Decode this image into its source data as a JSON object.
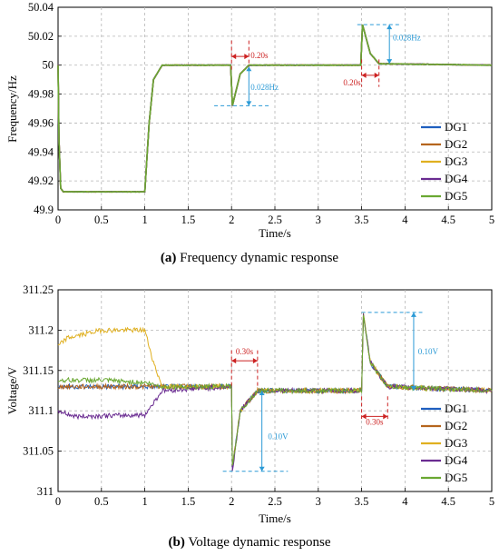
{
  "chart_data": [
    {
      "type": "line",
      "caption_letter": "(a)",
      "caption_text": "Frequency dynamic response",
      "xlabel": "Time/s",
      "ylabel": "Frequency/Hz",
      "xlim": [
        0,
        5
      ],
      "ylim": [
        49.9,
        50.04
      ],
      "xticks": [
        "0",
        "0.5",
        "1",
        "1.5",
        "2",
        "2.5",
        "3",
        "3.5",
        "4",
        "4.5",
        "5"
      ],
      "yticks": [
        "49.9",
        "49.92",
        "49.94",
        "49.96",
        "49.98",
        "50",
        "50.02",
        "50.04"
      ],
      "grid": true,
      "legend_position": "bottom-right",
      "series": [
        {
          "name": "DG1",
          "color": "#1f5fbf"
        },
        {
          "name": "DG2",
          "color": "#b5651d"
        },
        {
          "name": "DG3",
          "color": "#e0b020"
        },
        {
          "name": "DG4",
          "color": "#6a2c91"
        },
        {
          "name": "DG5",
          "color": "#6aa832"
        }
      ],
      "common_curve": [
        [
          0,
          50.0
        ],
        [
          0.01,
          49.95
        ],
        [
          0.03,
          49.915
        ],
        [
          0.06,
          49.9125
        ],
        [
          1.0,
          49.9125
        ],
        [
          1.05,
          49.96
        ],
        [
          1.1,
          49.99
        ],
        [
          1.2,
          50.0
        ],
        [
          1.99,
          50.0
        ],
        [
          2.01,
          49.972
        ],
        [
          2.1,
          49.994
        ],
        [
          2.2,
          50.0
        ],
        [
          3.49,
          50.0
        ],
        [
          3.51,
          50.028
        ],
        [
          3.6,
          50.008
        ],
        [
          3.7,
          50.001
        ],
        [
          5.0,
          50.0
        ]
      ],
      "annotations": [
        {
          "text": "0.20s",
          "color": "#cc2222"
        },
        {
          "text": "0.028Hz",
          "color": "#2b9ad6"
        },
        {
          "text": "0.20s",
          "color": "#cc2222"
        },
        {
          "text": "0.028Hz",
          "color": "#2b9ad6"
        }
      ]
    },
    {
      "type": "line",
      "caption_letter": "(b)",
      "caption_text": "Voltage dynamic response",
      "xlabel": "Time/s",
      "ylabel": "Voltage/V",
      "xlim": [
        0,
        5
      ],
      "ylim": [
        311,
        311.25
      ],
      "xticks": [
        "0",
        "0.5",
        "1",
        "1.5",
        "2",
        "2.5",
        "3",
        "3.5",
        "4",
        "4.5",
        "5"
      ],
      "yticks": [
        "311",
        "311.05",
        "311.1",
        "311.15",
        "311.2",
        "311.25"
      ],
      "grid": true,
      "legend_position": "bottom-right",
      "series": [
        {
          "name": "DG1",
          "color": "#1f5fbf",
          "values": [
            [
              0,
              311.13
            ],
            [
              1.0,
              311.13
            ],
            [
              1.2,
              311.13
            ],
            [
              2.0,
              311.13
            ],
            [
              2.01,
              311.03
            ],
            [
              2.1,
              311.1
            ],
            [
              2.3,
              311.125
            ],
            [
              3.5,
              311.125
            ],
            [
              3.52,
              311.22
            ],
            [
              3.6,
              311.16
            ],
            [
              3.8,
              311.13
            ],
            [
              5.0,
              311.125
            ]
          ]
        },
        {
          "name": "DG2",
          "color": "#b5651d",
          "values": [
            [
              0,
              311.13
            ],
            [
              1.0,
              311.13
            ],
            [
              1.2,
              311.13
            ],
            [
              2.0,
              311.13
            ],
            [
              2.01,
              311.03
            ],
            [
              2.1,
              311.1
            ],
            [
              2.3,
              311.125
            ],
            [
              3.5,
              311.125
            ],
            [
              3.52,
              311.22
            ],
            [
              3.6,
              311.16
            ],
            [
              3.8,
              311.13
            ],
            [
              5.0,
              311.125
            ]
          ]
        },
        {
          "name": "DG3",
          "color": "#e0b020",
          "values": [
            [
              0,
              311.18
            ],
            [
              0.1,
              311.19
            ],
            [
              0.5,
              311.2
            ],
            [
              1.0,
              311.2
            ],
            [
              1.1,
              311.16
            ],
            [
              1.2,
              311.13
            ],
            [
              2.0,
              311.13
            ],
            [
              2.01,
              311.03
            ],
            [
              2.1,
              311.1
            ],
            [
              2.3,
              311.125
            ],
            [
              3.5,
              311.125
            ],
            [
              3.52,
              311.22
            ],
            [
              3.6,
              311.16
            ],
            [
              3.8,
              311.13
            ],
            [
              5.0,
              311.125
            ]
          ]
        },
        {
          "name": "DG4",
          "color": "#6a2c91",
          "values": [
            [
              0,
              311.1
            ],
            [
              0.2,
              311.093
            ],
            [
              1.0,
              311.095
            ],
            [
              1.1,
              311.11
            ],
            [
              1.2,
              311.125
            ],
            [
              2.0,
              311.13
            ],
            [
              2.01,
              311.025
            ],
            [
              2.1,
              311.1
            ],
            [
              2.3,
              311.125
            ],
            [
              3.5,
              311.125
            ],
            [
              3.52,
              311.22
            ],
            [
              3.6,
              311.16
            ],
            [
              3.8,
              311.13
            ],
            [
              5.0,
              311.125
            ]
          ]
        },
        {
          "name": "DG5",
          "color": "#6aa832",
          "values": [
            [
              0,
              311.138
            ],
            [
              0.5,
              311.138
            ],
            [
              1.0,
              311.135
            ],
            [
              1.2,
              311.13
            ],
            [
              2.0,
              311.13
            ],
            [
              2.01,
              311.03
            ],
            [
              2.1,
              311.1
            ],
            [
              2.3,
              311.125
            ],
            [
              3.5,
              311.125
            ],
            [
              3.52,
              311.22
            ],
            [
              3.6,
              311.16
            ],
            [
              3.8,
              311.13
            ],
            [
              5.0,
              311.125
            ]
          ]
        }
      ],
      "annotations": [
        {
          "text": "0.30s",
          "color": "#cc2222"
        },
        {
          "text": "0.10V",
          "color": "#2b9ad6"
        },
        {
          "text": "0.30s",
          "color": "#cc2222"
        },
        {
          "text": "0.10V",
          "color": "#2b9ad6"
        }
      ]
    }
  ]
}
